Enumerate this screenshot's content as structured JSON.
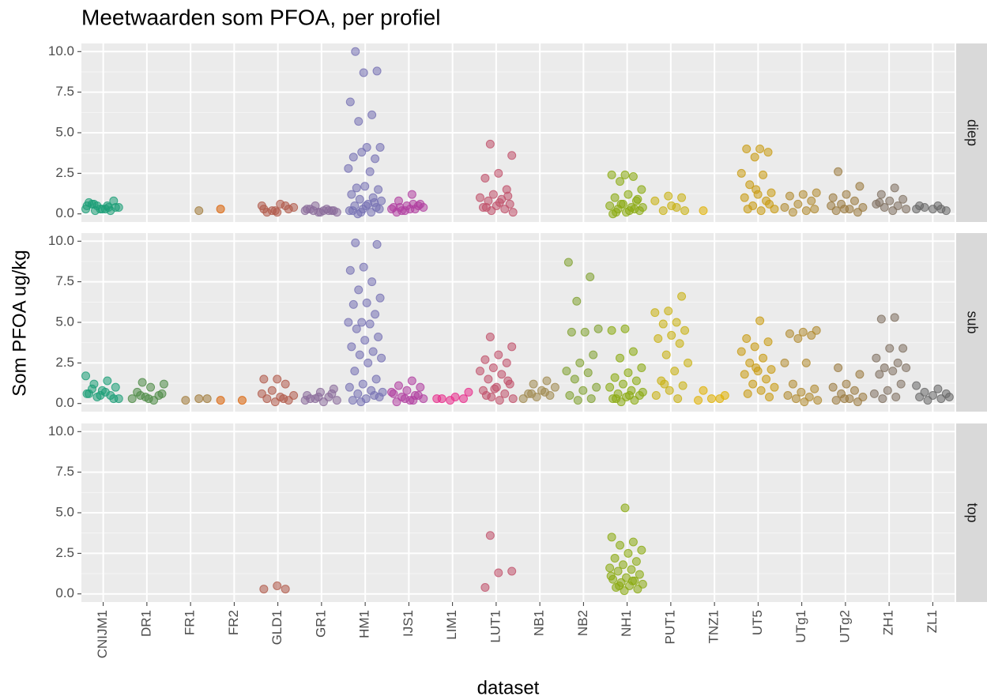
{
  "chart_data": {
    "type": "scatter",
    "title": "Meetwaarden som PFOA, per profiel",
    "x_label": "dataset",
    "y_label": "Som PFOA ug/kg",
    "categories": [
      "CNIJM1",
      "DR1",
      "FR1",
      "FR2",
      "GLD1",
      "GR1",
      "HM1",
      "IJS1",
      "LIM1",
      "LUT1",
      "NB1",
      "NB2",
      "NH1",
      "PUT1",
      "TNZ1",
      "UT5",
      "UTg1",
      "UTg2",
      "ZH1",
      "ZL1"
    ],
    "colors": [
      "#1b9e77",
      "#4d8a45",
      "#a07a3a",
      "#d95f02",
      "#b05a4a",
      "#8a6c9a",
      "#7570b3",
      "#b03fa0",
      "#e7298a",
      "#c0506a",
      "#a08a50",
      "#80a030",
      "#8aaa10",
      "#c8b010",
      "#e0b000",
      "#c89a10",
      "#b08a30",
      "#9a7a40",
      "#807060",
      "#666666"
    ],
    "ylim": [
      -0.5,
      10.5
    ],
    "yticks": [
      {
        "value": 0,
        "label": "0.0"
      },
      2.5,
      {
        "value": 5,
        "label": "5.0"
      },
      7.5,
      {
        "value": 10,
        "label": "10.0"
      }
    ],
    "grid": true,
    "facets": [
      {
        "label": "diep",
        "values": [
          [
            0.3,
            0.5,
            0.6,
            0.4,
            0.3,
            0.7,
            0.2,
            0.5,
            0.4,
            0.3,
            0.6,
            0.8,
            0.3,
            0.5,
            0.4,
            0.2
          ],
          [],
          [
            0.2
          ],
          [
            0.3
          ],
          [
            0.1,
            0.3,
            0.5,
            0.2,
            0.4,
            0.6,
            0.1,
            0.3,
            0.2,
            0.5
          ],
          [
            0.2,
            0.1,
            0.3,
            0.2,
            0.5,
            0.1,
            0.2,
            0.3,
            0.2,
            0.1,
            0.2,
            0.3,
            0.2
          ],
          [
            10.0,
            8.8,
            8.7,
            6.9,
            6.1,
            5.7,
            4.1,
            4.1,
            3.5,
            3.4,
            3.8,
            2.8,
            2.6,
            1.6,
            1.5,
            1.7,
            1.2,
            1.0,
            0.9,
            0.8,
            0.6,
            0.5,
            0.4,
            0.3,
            0.2,
            0.1,
            0.0,
            0.3,
            0.5,
            0.2,
            0.7,
            0.1
          ],
          [
            1.2,
            0.8,
            0.6,
            0.5,
            0.4,
            0.3,
            0.2,
            0.4,
            0.3,
            0.1,
            0.5,
            0.2,
            0.3,
            0.6,
            0.4
          ],
          [],
          [
            4.3,
            3.6,
            2.5,
            2.2,
            1.5,
            1.2,
            1.0,
            0.9,
            0.8,
            0.6,
            0.5,
            0.4,
            0.3,
            0.2,
            0.1,
            0.7,
            0.4,
            1.1
          ],
          [],
          [],
          [
            2.4,
            2.4,
            2.3,
            2.0,
            1.5,
            1.2,
            1.0,
            0.8,
            0.6,
            0.5,
            0.4,
            0.3,
            0.2,
            0.1,
            0.0,
            0.3,
            0.6,
            0.4,
            0.2,
            0.1,
            0.9
          ],
          [
            1.0,
            1.1,
            0.8,
            0.4,
            0.2,
            0.2,
            0.5
          ],
          [
            0.2
          ],
          [
            4.0,
            4.0,
            3.8,
            3.5,
            2.5,
            2.4,
            1.8,
            1.3,
            1.2,
            1.0,
            0.8,
            0.5,
            0.3,
            0.2,
            0.3,
            0.6,
            1.5
          ],
          [
            1.3,
            1.2,
            1.1,
            0.8,
            0.6,
            0.4,
            0.2,
            0.1,
            0.3
          ],
          [
            2.6,
            1.7,
            1.2,
            1.0,
            0.8,
            0.6,
            0.4,
            0.3,
            0.2,
            0.1,
            0.3,
            0.5
          ],
          [
            1.6,
            1.2,
            0.9,
            0.8,
            0.6,
            0.5,
            0.4,
            0.3,
            0.2,
            0.7
          ],
          [
            0.3,
            0.5,
            0.4,
            0.2,
            0.3,
            0.5,
            0.3
          ]
        ]
      },
      {
        "label": "sub",
        "values": [
          [
            1.7,
            1.4,
            1.2,
            1.0,
            0.8,
            0.6,
            0.5,
            0.4,
            0.3,
            0.7,
            0.9,
            0.3,
            0.5,
            0.6
          ],
          [
            1.3,
            1.2,
            1.0,
            0.7,
            0.5,
            0.4,
            0.3,
            0.2,
            0.5,
            0.6,
            0.3
          ],
          [
            0.3,
            0.2,
            0.3
          ],
          [
            0.2,
            0.2
          ],
          [
            1.5,
            1.5,
            1.2,
            0.8,
            0.5,
            0.4,
            0.3,
            0.2,
            0.1,
            0.6,
            0.3
          ],
          [
            0.9,
            0.7,
            0.5,
            0.4,
            0.3,
            0.2,
            0.1,
            0.3,
            0.6,
            0.4,
            0.2
          ],
          [
            9.9,
            9.8,
            8.4,
            8.2,
            7.5,
            7.0,
            6.5,
            6.2,
            6.1,
            5.5,
            5.0,
            5.0,
            4.9,
            4.6,
            4.1,
            3.9,
            3.5,
            3.2,
            3.0,
            2.8,
            2.5,
            2.0,
            1.5,
            1.2,
            1.0,
            0.8,
            0.6,
            0.4,
            0.3,
            0.2,
            0.5,
            0.1,
            0.7
          ],
          [
            1.4,
            1.1,
            1.0,
            0.8,
            0.6,
            0.5,
            0.4,
            0.3,
            0.2,
            0.1,
            0.5,
            0.3,
            0.7,
            0.2
          ],
          [
            0.7,
            0.4,
            0.3,
            0.3,
            0.2,
            0.3
          ],
          [
            4.1,
            3.5,
            3.0,
            2.7,
            2.5,
            2.2,
            2.0,
            1.8,
            1.5,
            1.2,
            1.0,
            0.8,
            0.6,
            0.4,
            0.3,
            0.2,
            0.5,
            1.4,
            0.9
          ],
          [
            1.4,
            1.2,
            1.0,
            0.8,
            0.6,
            0.5,
            0.4,
            0.3,
            0.7,
            0.6
          ],
          [
            8.7,
            7.8,
            6.3,
            4.6,
            4.4,
            4.4,
            3.0,
            2.5,
            2.0,
            1.9,
            1.5,
            1.0,
            0.8,
            0.5,
            0.3,
            0.2
          ],
          [
            4.6,
            4.5,
            3.2,
            2.8,
            2.2,
            1.9,
            1.6,
            1.4,
            1.2,
            1.0,
            0.8,
            0.6,
            0.5,
            0.4,
            0.3,
            0.2,
            0.1,
            0.7,
            0.5,
            0.3
          ],
          [
            6.6,
            5.7,
            5.6,
            5.0,
            4.9,
            4.5,
            4.2,
            4.0,
            3.7,
            3.0,
            2.5,
            2.0,
            1.4,
            1.1,
            0.8,
            0.5,
            0.3,
            1.2
          ],
          [
            0.8,
            0.5,
            0.3,
            0.2,
            0.3
          ],
          [
            5.1,
            4.0,
            3.8,
            3.5,
            3.2,
            2.8,
            2.5,
            2.1,
            2.0,
            1.8,
            1.5,
            1.2,
            1.0,
            0.8,
            0.6,
            0.4,
            2.2
          ],
          [
            4.5,
            4.4,
            4.3,
            4.2,
            4.0,
            2.5,
            2.5,
            1.2,
            0.9,
            0.7,
            0.5,
            0.4,
            0.3,
            0.2,
            0.1
          ],
          [
            2.2,
            1.8,
            1.2,
            1.0,
            0.8,
            0.6,
            0.4,
            0.3,
            0.2,
            0.1,
            0.3
          ],
          [
            5.3,
            5.2,
            3.4,
            3.4,
            2.8,
            2.5,
            2.2,
            2.2,
            2.0,
            1.8,
            1.2,
            0.8,
            0.6,
            0.4,
            0.3
          ],
          [
            1.1,
            0.9,
            0.7,
            0.6,
            0.5,
            0.4,
            0.3,
            0.2,
            0.4
          ]
        ]
      },
      {
        "label": "top",
        "values": [
          [],
          [],
          [],
          [],
          [
            0.5,
            0.3,
            0.3
          ],
          [],
          [],
          [],
          [],
          [
            3.6,
            1.4,
            1.3,
            0.4
          ],
          [],
          [],
          [
            5.3,
            3.5,
            3.2,
            3.0,
            2.7,
            2.5,
            2.2,
            2.0,
            1.8,
            1.6,
            1.5,
            1.4,
            1.2,
            1.0,
            0.9,
            0.8,
            0.7,
            0.6,
            0.5,
            0.4,
            0.3,
            0.2,
            1.1,
            0.8,
            0.5
          ],
          [],
          [],
          [],
          [],
          [],
          [],
          []
        ]
      }
    ]
  }
}
